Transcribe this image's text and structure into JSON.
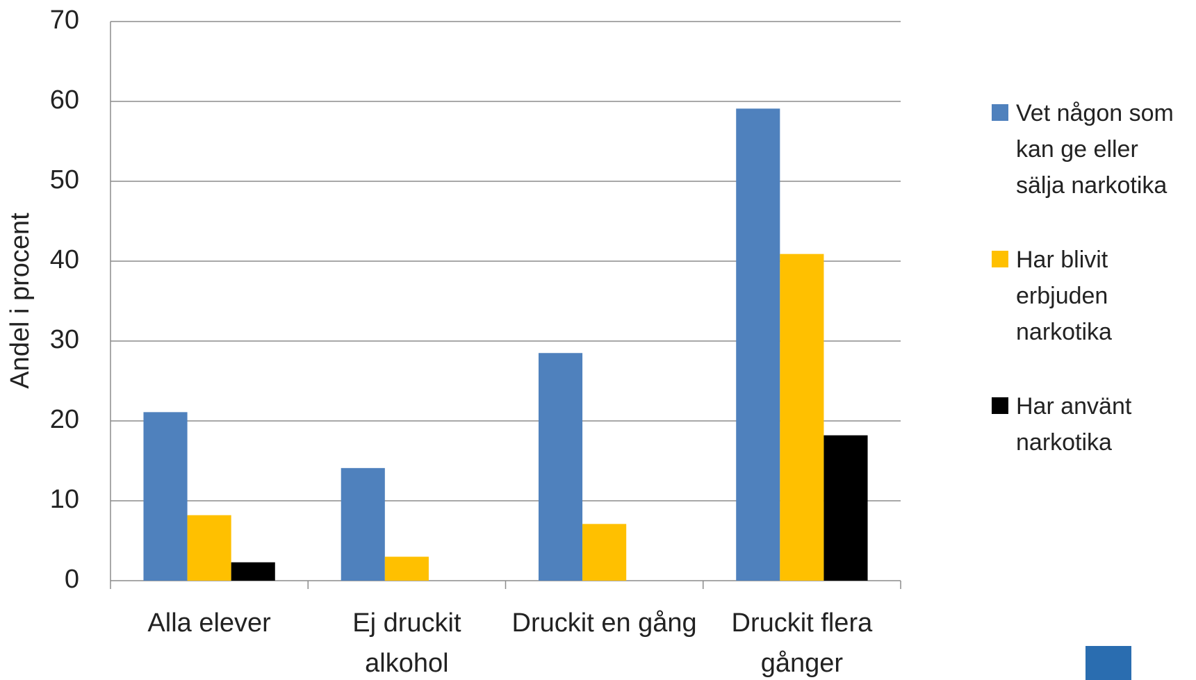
{
  "chart_data": {
    "type": "bar",
    "y_label": "Andel i procent",
    "categories": [
      "Alla elever",
      "Ej druckit alkohol",
      "Druckit en gång",
      "Druckit flera gånger"
    ],
    "series": [
      {
        "name": "Vet någon som kan ge eller sälja narkotika",
        "color": "#4f81bd",
        "values": [
          21.1,
          14.1,
          28.5,
          59.1
        ]
      },
      {
        "name": "Har blivit erbjuden narkotika",
        "color": "#ffc000",
        "values": [
          8.2,
          3,
          7.1,
          40.9
        ]
      },
      {
        "name": "Har använt narkotika",
        "color": "#000000",
        "values": [
          2.3,
          0,
          0,
          18.2
        ]
      }
    ],
    "ylim": [
      0,
      70
    ],
    "yticks": [
      0,
      10,
      20,
      30,
      40,
      50,
      60,
      70
    ],
    "grid": true,
    "legend": "right"
  }
}
